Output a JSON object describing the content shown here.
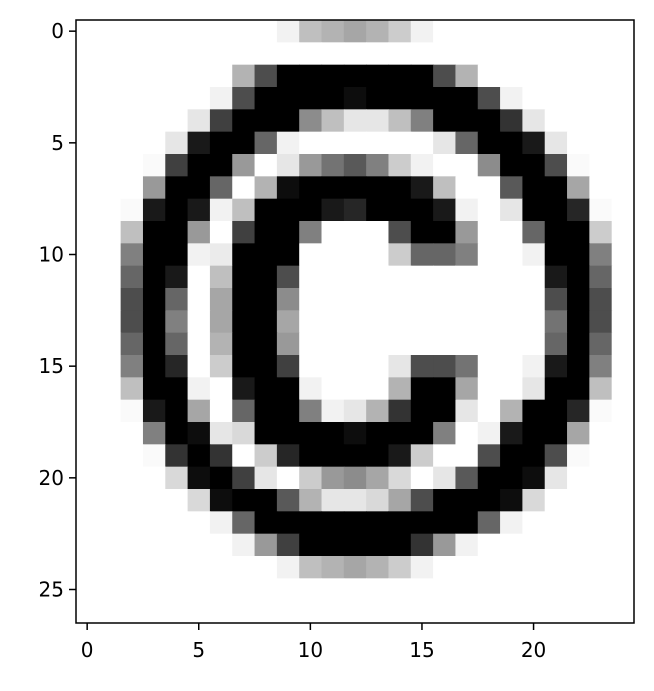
{
  "chart_data": {
    "type": "heatmap",
    "colormap": "gray_r",
    "vmin": 0,
    "vmax": 1,
    "interpolation": "nearest",
    "grid": false,
    "title": "",
    "xlabel": "",
    "ylabel": "",
    "xlim": [
      -0.5,
      24.5
    ],
    "ylim": [
      26.5,
      -0.5
    ],
    "xticks": [
      0,
      5,
      10,
      15,
      20
    ],
    "yticks": [
      0,
      5,
      10,
      15,
      20,
      25
    ],
    "xtick_labels": [
      "0",
      "5",
      "10",
      "15",
      "20"
    ],
    "ytick_labels": [
      "0",
      "5",
      "10",
      "15",
      "20",
      "25"
    ],
    "rows": 27,
    "cols": 25,
    "values": [
      [
        0,
        0,
        0,
        0,
        0,
        0,
        0,
        0,
        0,
        0.05,
        0.25,
        0.3,
        0.35,
        0.3,
        0.2,
        0.05,
        0,
        0,
        0,
        0,
        0,
        0,
        0,
        0,
        0
      ],
      [
        0,
        0,
        0,
        0,
        0,
        0,
        0,
        0,
        0,
        0,
        0,
        0,
        0,
        0,
        0,
        0,
        0,
        0,
        0,
        0,
        0,
        0,
        0,
        0,
        0
      ],
      [
        0,
        0,
        0,
        0,
        0,
        0,
        0,
        0.3,
        0.7,
        1,
        1,
        1,
        1,
        1,
        1,
        1,
        0.7,
        0.3,
        0,
        0,
        0,
        0,
        0,
        0,
        0
      ],
      [
        0,
        0,
        0,
        0,
        0,
        0,
        0.05,
        0.7,
        1,
        1,
        1,
        1,
        0.95,
        1,
        1,
        1,
        1,
        1,
        0.7,
        0.05,
        0,
        0,
        0,
        0,
        0
      ],
      [
        0,
        0,
        0,
        0,
        0,
        0.1,
        0.75,
        1,
        1,
        1,
        0.45,
        0.25,
        0.1,
        0.1,
        0.25,
        0.5,
        1,
        1,
        1,
        0.8,
        0.1,
        0,
        0,
        0,
        0
      ],
      [
        0,
        0,
        0,
        0,
        0.1,
        0.9,
        1,
        1,
        0.6,
        0.05,
        0,
        0,
        0,
        0,
        0,
        0,
        0.1,
        0.6,
        1,
        1,
        0.9,
        0.1,
        0,
        0,
        0
      ],
      [
        0,
        0,
        0,
        0.02,
        0.75,
        1,
        1,
        0.4,
        0,
        0.1,
        0.4,
        0.55,
        0.65,
        0.5,
        0.2,
        0.05,
        0,
        0,
        0.45,
        1,
        1,
        0.7,
        0.02,
        0,
        0
      ],
      [
        0,
        0,
        0,
        0.4,
        1,
        1,
        0.6,
        0,
        0.3,
        0.95,
        1,
        1,
        1,
        1,
        1,
        0.9,
        0.25,
        0,
        0,
        0.65,
        1,
        1,
        0.35,
        0,
        0
      ],
      [
        0,
        0,
        0.02,
        0.9,
        1,
        0.9,
        0.05,
        0.25,
        1,
        1,
        1,
        0.9,
        0.85,
        1,
        1,
        1,
        0.9,
        0.05,
        0,
        0.1,
        1,
        1,
        0.85,
        0.02,
        0
      ],
      [
        0,
        0,
        0.25,
        1,
        1,
        0.4,
        0,
        0.75,
        1,
        1,
        0.5,
        0,
        0,
        0,
        0.7,
        1,
        1,
        0.4,
        0,
        0,
        0.6,
        1,
        1,
        0.2,
        0
      ],
      [
        0,
        0,
        0.5,
        1,
        1,
        0.05,
        0.08,
        1,
        1,
        1,
        0,
        0,
        0,
        0,
        0.2,
        0.6,
        0.6,
        0.5,
        0,
        0,
        0.05,
        1,
        1,
        0.5,
        0
      ],
      [
        0,
        0,
        0.6,
        1,
        0.9,
        0,
        0.25,
        1,
        1,
        0.7,
        0,
        0,
        0,
        0,
        0,
        0,
        0,
        0,
        0,
        0,
        0,
        0.9,
        1,
        0.6,
        0
      ],
      [
        0,
        0,
        0.7,
        1,
        0.6,
        0,
        0.35,
        1,
        1,
        0.45,
        0,
        0,
        0,
        0,
        0,
        0,
        0,
        0,
        0,
        0,
        0,
        0.7,
        1,
        0.7,
        0
      ],
      [
        0,
        0,
        0.7,
        1,
        0.5,
        0,
        0.35,
        1,
        1,
        0.35,
        0,
        0,
        0,
        0,
        0,
        0,
        0,
        0,
        0,
        0,
        0,
        0.55,
        1,
        0.7,
        0
      ],
      [
        0,
        0,
        0.6,
        1,
        0.6,
        0,
        0.3,
        1,
        1,
        0.4,
        0,
        0,
        0,
        0,
        0,
        0,
        0,
        0,
        0,
        0,
        0,
        0.6,
        1,
        0.6,
        0
      ],
      [
        0,
        0,
        0.5,
        1,
        0.85,
        0,
        0.2,
        1,
        1,
        0.75,
        0,
        0,
        0,
        0,
        0.1,
        0.7,
        0.7,
        0.55,
        0,
        0,
        0.05,
        0.9,
        1,
        0.5,
        0
      ],
      [
        0,
        0,
        0.25,
        1,
        1,
        0.05,
        0,
        0.9,
        1,
        1,
        0.05,
        0,
        0,
        0,
        0.3,
        1,
        1,
        0.35,
        0,
        0,
        0.1,
        1,
        1,
        0.25,
        0
      ],
      [
        0,
        0,
        0.02,
        0.9,
        1,
        0.35,
        0,
        0.6,
        1,
        1,
        0.5,
        0.05,
        0.1,
        0.3,
        0.8,
        1,
        1,
        0.1,
        0,
        0.3,
        1,
        1,
        0.85,
        0.02,
        0
      ],
      [
        0,
        0,
        0,
        0.5,
        1,
        0.95,
        0.1,
        0.15,
        1,
        1,
        1,
        1,
        0.95,
        1,
        1,
        1,
        0.5,
        0,
        0.05,
        0.9,
        1,
        1,
        0.35,
        0,
        0
      ],
      [
        0,
        0,
        0,
        0.02,
        0.8,
        1,
        0.8,
        0,
        0.2,
        0.85,
        1,
        1,
        1,
        1,
        0.9,
        0.2,
        0,
        0,
        0.7,
        1,
        1,
        0.7,
        0.02,
        0,
        0
      ],
      [
        0,
        0,
        0,
        0,
        0.15,
        0.95,
        1,
        0.75,
        0.1,
        0,
        0.2,
        0.4,
        0.45,
        0.35,
        0.15,
        0,
        0.1,
        0.65,
        1,
        1,
        0.95,
        0.1,
        0,
        0,
        0
      ],
      [
        0,
        0,
        0,
        0,
        0,
        0.15,
        0.95,
        1,
        1,
        0.65,
        0.3,
        0.1,
        0.1,
        0.15,
        0.35,
        0.7,
        1,
        1,
        1,
        0.95,
        0.15,
        0,
        0,
        0,
        0
      ],
      [
        0,
        0,
        0,
        0,
        0,
        0,
        0.05,
        0.6,
        1,
        1,
        1,
        1,
        1,
        1,
        1,
        1,
        1,
        1,
        0.6,
        0.05,
        0,
        0,
        0,
        0,
        0
      ],
      [
        0,
        0,
        0,
        0,
        0,
        0,
        0,
        0.05,
        0.4,
        0.75,
        1,
        1,
        1,
        1,
        1,
        0.8,
        0.4,
        0.05,
        0,
        0,
        0,
        0,
        0,
        0,
        0
      ],
      [
        0,
        0,
        0,
        0,
        0,
        0,
        0,
        0,
        0,
        0.05,
        0.25,
        0.3,
        0.35,
        0.3,
        0.2,
        0.05,
        0,
        0,
        0,
        0,
        0,
        0,
        0,
        0,
        0
      ],
      [
        0,
        0,
        0,
        0,
        0,
        0,
        0,
        0,
        0,
        0,
        0,
        0,
        0,
        0,
        0,
        0,
        0,
        0,
        0,
        0,
        0,
        0,
        0,
        0,
        0
      ],
      [
        0,
        0,
        0,
        0,
        0,
        0,
        0,
        0,
        0,
        0,
        0,
        0,
        0,
        0,
        0,
        0,
        0,
        0,
        0,
        0,
        0,
        0,
        0,
        0,
        0
      ]
    ]
  }
}
